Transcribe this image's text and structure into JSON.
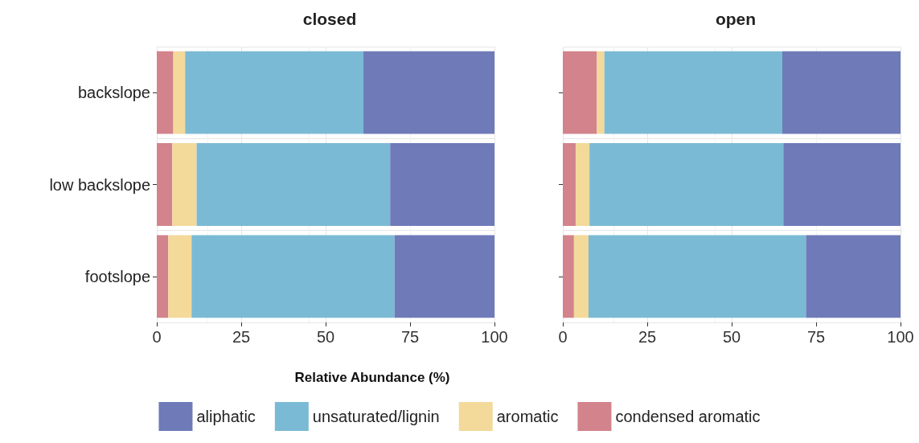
{
  "chart_data": [
    {
      "type": "bar",
      "title": "closed",
      "xlabel": "Relative Abundance (%)",
      "orientation": "horizontal",
      "stacked": true,
      "categories": [
        "backslope",
        "low backslope",
        "footslope"
      ],
      "series": [
        {
          "name": "condensed aromatic",
          "color": "#d2838b",
          "values": [
            4.9,
            4.6,
            3.4
          ]
        },
        {
          "name": "aromatic",
          "color": "#f3d99a",
          "values": [
            3.5,
            7.2,
            6.9
          ]
        },
        {
          "name": "unsaturated/lignin",
          "color": "#7bbad4",
          "values": [
            52.8,
            57.3,
            60.1
          ]
        },
        {
          "name": "aliphatic",
          "color": "#6e7bb8",
          "values": [
            38.8,
            30.9,
            29.6
          ]
        }
      ],
      "xlim": [
        0,
        100
      ],
      "xticks": [
        0,
        25,
        50,
        75,
        100
      ],
      "grid": true,
      "legend": "bottom"
    },
    {
      "type": "bar",
      "title": "open",
      "orientation": "horizontal",
      "stacked": true,
      "categories": [
        null,
        null,
        null
      ],
      "series": [
        {
          "color": "#d2838b",
          "values": [
            10.1,
            3.8,
            3.3
          ]
        },
        {
          "color": "#f3d99a",
          "values": [
            2.2,
            4.1,
            4.3
          ]
        },
        {
          "color": "#7bbad4",
          "values": [
            52.7,
            57.4,
            64.4
          ]
        },
        {
          "color": "#6e7bb8",
          "values": [
            35.0,
            34.7,
            28.0
          ]
        }
      ],
      "xlim": [
        0,
        100
      ],
      "xticks": [
        0,
        25,
        50,
        75,
        100
      ],
      "grid": true
    }
  ]
}
